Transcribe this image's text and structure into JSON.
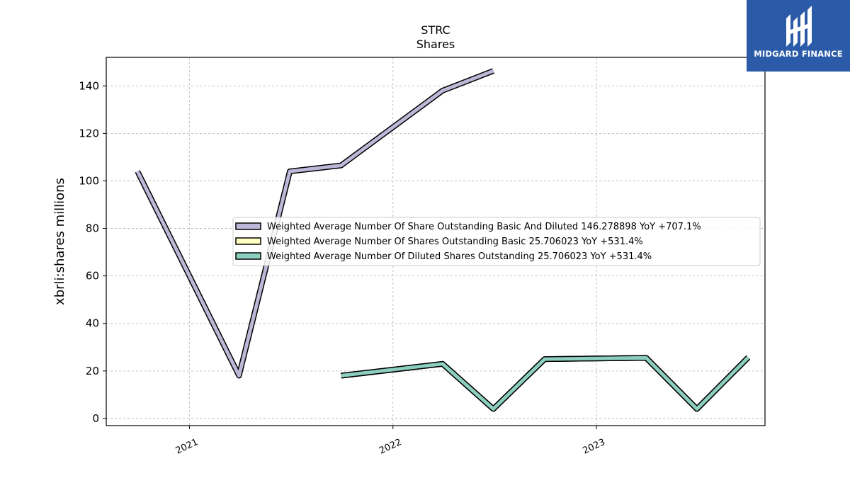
{
  "chart_data": {
    "type": "line",
    "title_line1": "STRC",
    "title_line2": "Shares",
    "ylabel": "xbrli:shares millions",
    "xlabel": "",
    "ylim": [
      -3,
      152
    ],
    "xlim": [
      "2020-08-05",
      "2023-10-30"
    ],
    "yticks": [
      0,
      20,
      40,
      60,
      80,
      100,
      120,
      140
    ],
    "xticks": [
      {
        "date": "2021-01-01",
        "label": "2021"
      },
      {
        "date": "2022-01-01",
        "label": "2022"
      },
      {
        "date": "2023-01-01",
        "label": "2023"
      }
    ],
    "grid": true,
    "legend_position": "center-right",
    "series": [
      {
        "name": "Weighted Average Number Of Share Outstanding Basic And Diluted  146.278898 YoY +707.1%",
        "color": "#bcb8d8",
        "points": [
          {
            "x": "2020-09-30",
            "y": 104
          },
          {
            "x": "2021-03-31",
            "y": 18
          },
          {
            "x": "2021-06-30",
            "y": 104
          },
          {
            "x": "2021-09-30",
            "y": 106.5
          },
          {
            "x": "2022-03-31",
            "y": 138
          },
          {
            "x": "2022-06-30",
            "y": 146.3
          }
        ]
      },
      {
        "name": "Weighted Average Number Of Shares Outstanding Basic  25.706023 YoY +531.4%",
        "color": "#ffffc0",
        "points": [
          {
            "x": "2021-09-30",
            "y": 18
          },
          {
            "x": "2022-03-31",
            "y": 23
          },
          {
            "x": "2022-06-30",
            "y": 4
          },
          {
            "x": "2022-09-30",
            "y": 25
          },
          {
            "x": "2023-03-31",
            "y": 25.5
          },
          {
            "x": "2023-06-30",
            "y": 4
          },
          {
            "x": "2023-09-30",
            "y": 25.7
          }
        ]
      },
      {
        "name": "Weighted Average Number Of Diluted Shares Outstanding  25.706023 YoY +531.4%",
        "color": "#8ccfbe",
        "points": [
          {
            "x": "2021-09-30",
            "y": 18
          },
          {
            "x": "2022-03-31",
            "y": 23
          },
          {
            "x": "2022-06-30",
            "y": 4
          },
          {
            "x": "2022-09-30",
            "y": 25
          },
          {
            "x": "2023-03-31",
            "y": 25.5
          },
          {
            "x": "2023-06-30",
            "y": 4
          },
          {
            "x": "2023-09-30",
            "y": 25.7
          }
        ]
      }
    ]
  },
  "logo": {
    "text": "MIDGARD FINANCE",
    "color": "#2a5aa8"
  }
}
